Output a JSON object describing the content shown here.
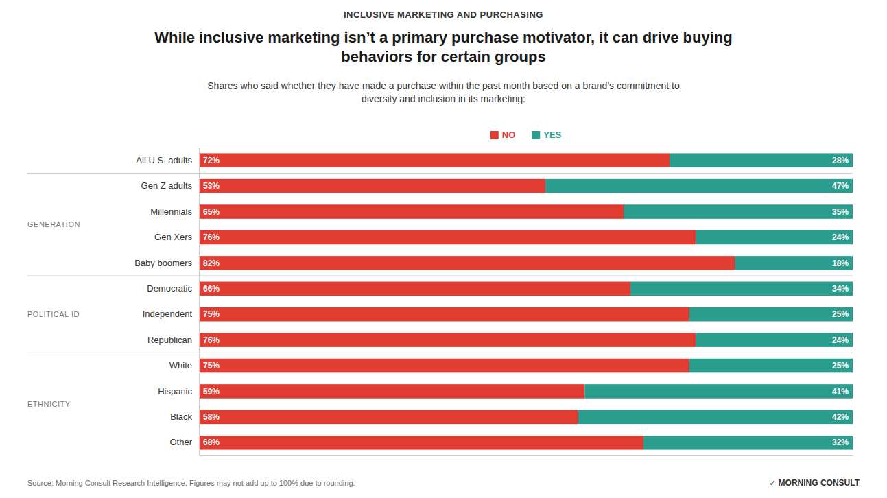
{
  "chart_data": {
    "type": "bar",
    "orientation": "horizontal",
    "stacked": true,
    "data_labels": true,
    "tick_labels": "y",
    "grid": false,
    "legend": "top",
    "supertitle": "INCLUSIVE MARKETING AND PURCHASING",
    "title": "While inclusive marketing isn’t a primary purchase motivator, it can drive buying\nbehaviors for certain groups",
    "subtitle": "Shares who said whether they have made a purchase within the past month based on a brand’s commitment to\ndiversity and inclusion in its marketing:",
    "categories": [
      "All U.S. adults",
      "Gen Z adults",
      "Millennials",
      "Gen Xers",
      "Baby boomers",
      "Democratic",
      "Independent",
      "Republican",
      "White",
      "Hispanic",
      "Black",
      "Other"
    ],
    "series": [
      {
        "name": "NO",
        "color": "#E03C31",
        "values": [
          72,
          53,
          65,
          76,
          82,
          66,
          75,
          76,
          75,
          59,
          58,
          68
        ],
        "value_labels": [
          "72%",
          "53%",
          "65%",
          "76%",
          "82%",
          "66%",
          "75%",
          "76%",
          "75%",
          "59%",
          "58%",
          "68%"
        ]
      },
      {
        "name": "YES",
        "color": "#2A9D8F",
        "values": [
          28,
          47,
          35,
          24,
          18,
          34,
          25,
          24,
          25,
          41,
          42,
          32
        ],
        "value_labels": [
          "28%",
          "47%",
          "35%",
          "24%",
          "18%",
          "34%",
          "25%",
          "24%",
          "25%",
          "41%",
          "42%",
          "32%"
        ]
      }
    ],
    "xlim": [
      0,
      100
    ],
    "annotations": [
      {
        "text": "GENERATION",
        "categories": [
          "Gen Z adults",
          "Millennials",
          "Gen Xers",
          "Baby boomers"
        ]
      },
      {
        "text": "POLITICAL ID",
        "categories": [
          "Democratic",
          "Independent",
          "Republican"
        ]
      },
      {
        "text": "ETHNICITY",
        "categories": [
          "White",
          "Hispanic",
          "Black",
          "Other"
        ]
      }
    ],
    "source": "Source: Morning Consult Research Intelligence. Figures may not add up to 100% due to rounding.",
    "credit": "✓ MORNING CONSULT"
  }
}
